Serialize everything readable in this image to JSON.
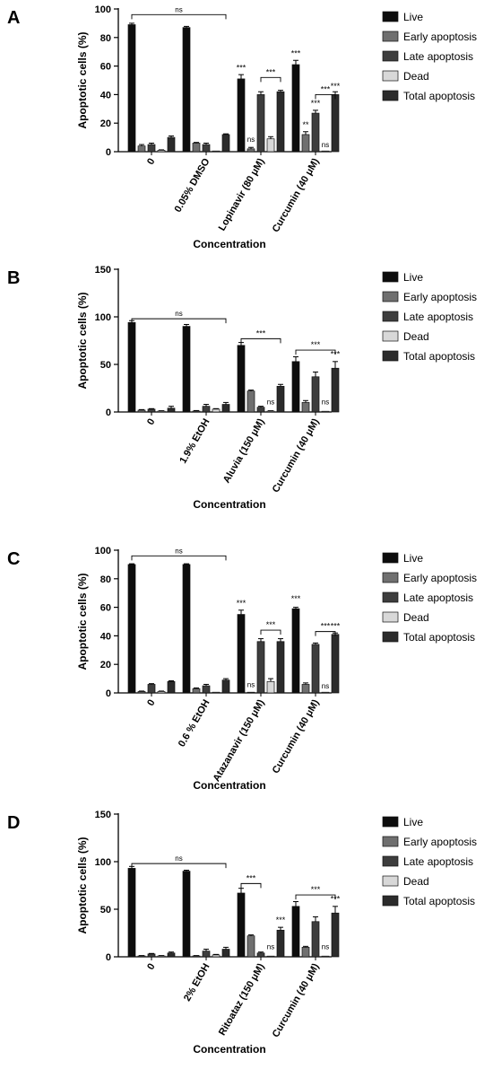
{
  "legend_labels": [
    "Live",
    "Early apoptosis",
    "Late apoptosis",
    "Dead",
    "Total apoptosis"
  ],
  "series_colors": [
    "#0d0d0d",
    "#6f6f6f",
    "#3d3d3d",
    "#d8d8d8",
    "#2b2b2b"
  ],
  "chart_data": [
    {
      "panel": "A",
      "type": "bar",
      "ylabel": "Apoptotic cells (%)",
      "xlabel": "Concentration",
      "ylim": [
        0,
        100
      ],
      "yticks": [
        0,
        20,
        40,
        60,
        80,
        100
      ],
      "categories": [
        "0",
        "0.05% DMSO",
        "Lopinavir (80 μM)",
        "Curcumin (40 μM)"
      ],
      "series": [
        {
          "name": "Live",
          "values": [
            89,
            87,
            51,
            61
          ],
          "errors": [
            1,
            0.8,
            3,
            3
          ]
        },
        {
          "name": "Early apoptosis",
          "values": [
            4,
            6,
            2,
            12
          ],
          "errors": [
            1,
            0.5,
            1,
            2
          ]
        },
        {
          "name": "Late apoptosis",
          "values": [
            5,
            5,
            40,
            27
          ],
          "errors": [
            1,
            1,
            2,
            2
          ]
        },
        {
          "name": "Dead",
          "values": [
            1,
            0,
            9,
            0
          ],
          "errors": [
            0.3,
            0,
            1.5,
            0
          ]
        },
        {
          "name": "Total apoptosis",
          "values": [
            10,
            12,
            42,
            40
          ],
          "errors": [
            1,
            0.5,
            1,
            2
          ]
        }
      ],
      "annotations": [
        {
          "type": "bracket",
          "label": "ns",
          "group_from": 0,
          "bar_from": 0,
          "group_to": 1,
          "bar_to": 4,
          "y": 96
        },
        {
          "type": "bracket",
          "label": "***",
          "group_from": 2,
          "bar_from": 2,
          "group_to": 2,
          "bar_to": 4,
          "y": 52
        },
        {
          "type": "bracket",
          "label": "***",
          "group_from": 3,
          "bar_from": 2,
          "group_to": 3,
          "bar_to": 4,
          "y": 40
        },
        {
          "type": "mark",
          "label": "***",
          "group": 2,
          "bar": 0,
          "y": 57
        },
        {
          "type": "mark",
          "label": "ns",
          "group": 2,
          "bar": 1,
          "y": 7
        },
        {
          "type": "mark",
          "label": "***",
          "group": 3,
          "bar": 0,
          "y": 67
        },
        {
          "type": "mark",
          "label": "**",
          "group": 3,
          "bar": 1,
          "y": 17
        },
        {
          "type": "mark",
          "label": "***",
          "group": 3,
          "bar": 2,
          "y": 32
        },
        {
          "type": "mark",
          "label": "ns",
          "group": 3,
          "bar": 3,
          "y": 3
        },
        {
          "type": "mark",
          "label": "***",
          "group": 3,
          "bar": 4,
          "y": 44
        }
      ]
    },
    {
      "panel": "B",
      "type": "bar",
      "ylabel": "Apoptotic cells (%)",
      "xlabel": "Concentration",
      "ylim": [
        0,
        150
      ],
      "yticks": [
        0,
        50,
        100,
        150
      ],
      "categories": [
        "0",
        "1.9% EtOH",
        "Aluvia (150 μM)",
        "Curcumin (40 μM)"
      ],
      "series": [
        {
          "name": "Live",
          "values": [
            94,
            90,
            70,
            53
          ],
          "errors": [
            2,
            2,
            3,
            5
          ]
        },
        {
          "name": "Early apoptosis",
          "values": [
            2,
            1,
            22,
            10
          ],
          "errors": [
            0.5,
            0.5,
            1,
            2
          ]
        },
        {
          "name": "Late apoptosis",
          "values": [
            3,
            6,
            5,
            37
          ],
          "errors": [
            0.5,
            2,
            1,
            5
          ]
        },
        {
          "name": "Dead",
          "values": [
            1,
            3,
            1,
            0
          ],
          "errors": [
            0.3,
            0.5,
            0.3,
            0
          ]
        },
        {
          "name": "Total apoptosis",
          "values": [
            4,
            8,
            27,
            46
          ],
          "errors": [
            2,
            2,
            2,
            7
          ]
        }
      ],
      "annotations": [
        {
          "type": "bracket",
          "label": "ns",
          "group_from": 0,
          "bar_from": 0,
          "group_to": 1,
          "bar_to": 4,
          "y": 98
        },
        {
          "type": "bracket",
          "label": "***",
          "group_from": 2,
          "bar_from": 0,
          "group_to": 2,
          "bar_to": 4,
          "y": 77
        },
        {
          "type": "bracket",
          "label": "***",
          "group_from": 3,
          "bar_from": 0,
          "group_to": 3,
          "bar_to": 4,
          "y": 65
        },
        {
          "type": "mark",
          "label": "ns",
          "group": 2,
          "bar": 3,
          "y": 8
        },
        {
          "type": "mark",
          "label": "ns",
          "group": 3,
          "bar": 3,
          "y": 8
        },
        {
          "type": "mark",
          "label": "***",
          "group": 3,
          "bar": 4,
          "y": 58
        }
      ]
    },
    {
      "panel": "C",
      "type": "bar",
      "ylabel": "Apoptotic cells (%)",
      "xlabel": "Concentration",
      "ylim": [
        0,
        100
      ],
      "yticks": [
        0,
        20,
        40,
        60,
        80,
        100
      ],
      "categories": [
        "0",
        "0.6 % EtOH",
        "Atazanavir (150 μM)",
        "Curcumin (40 μM)"
      ],
      "series": [
        {
          "name": "Live",
          "values": [
            90,
            90,
            55,
            59
          ],
          "errors": [
            0.5,
            0.5,
            3,
            1
          ]
        },
        {
          "name": "Early apoptosis",
          "values": [
            1,
            3,
            0,
            6
          ],
          "errors": [
            0.3,
            0.5,
            0,
            1
          ]
        },
        {
          "name": "Late apoptosis",
          "values": [
            6,
            5,
            36,
            34
          ],
          "errors": [
            0.5,
            1,
            2,
            1
          ]
        },
        {
          "name": "Dead",
          "values": [
            1,
            0,
            8,
            0
          ],
          "errors": [
            0.3,
            0,
            2,
            0
          ]
        },
        {
          "name": "Total apoptosis",
          "values": [
            8,
            9,
            36,
            41
          ],
          "errors": [
            0.5,
            1,
            2,
            1
          ]
        }
      ],
      "annotations": [
        {
          "type": "bracket",
          "label": "ns",
          "group_from": 0,
          "bar_from": 0,
          "group_to": 1,
          "bar_to": 4,
          "y": 96
        },
        {
          "type": "bracket",
          "label": "***",
          "group_from": 2,
          "bar_from": 2,
          "group_to": 2,
          "bar_to": 4,
          "y": 44
        },
        {
          "type": "bracket",
          "label": "***",
          "group_from": 3,
          "bar_from": 2,
          "group_to": 3,
          "bar_to": 4,
          "y": 43
        },
        {
          "type": "mark",
          "label": "***",
          "group": 2,
          "bar": 0,
          "y": 61
        },
        {
          "type": "mark",
          "label": "ns",
          "group": 2,
          "bar": 1,
          "y": 4
        },
        {
          "type": "mark",
          "label": "***",
          "group": 3,
          "bar": 0,
          "y": 64
        },
        {
          "type": "mark",
          "label": "ns",
          "group": 3,
          "bar": 3,
          "y": 3
        },
        {
          "type": "mark",
          "label": "***",
          "group": 3,
          "bar": 4,
          "y": 45
        }
      ]
    },
    {
      "panel": "D",
      "type": "bar",
      "ylabel": "Apoptotic cells (%)",
      "xlabel": "Concentration",
      "ylim": [
        0,
        150
      ],
      "yticks": [
        0,
        50,
        100,
        150
      ],
      "categories": [
        "0",
        "2% EtOH",
        "Ritoataz (150 μM)",
        "Curcumin (40 μM)"
      ],
      "series": [
        {
          "name": "Live",
          "values": [
            93,
            90,
            67,
            53
          ],
          "errors": [
            2,
            1,
            5,
            5
          ]
        },
        {
          "name": "Early apoptosis",
          "values": [
            1,
            1,
            22,
            10
          ],
          "errors": [
            0.3,
            0.3,
            1,
            1
          ]
        },
        {
          "name": "Late apoptosis",
          "values": [
            3,
            6,
            4,
            37
          ],
          "errors": [
            0.5,
            2,
            1,
            5
          ]
        },
        {
          "name": "Dead",
          "values": [
            1,
            2,
            0,
            0
          ],
          "errors": [
            0.3,
            0.5,
            0,
            0
          ]
        },
        {
          "name": "Total apoptosis",
          "values": [
            4,
            8,
            28,
            46
          ],
          "errors": [
            1,
            2,
            3,
            7
          ]
        }
      ],
      "annotations": [
        {
          "type": "bracket",
          "label": "ns",
          "group_from": 0,
          "bar_from": 0,
          "group_to": 1,
          "bar_to": 4,
          "y": 98
        },
        {
          "type": "bracket",
          "label": "***",
          "group_from": 2,
          "bar_from": 0,
          "group_to": 2,
          "bar_to": 2,
          "y": 77
        },
        {
          "type": "bracket",
          "label": "***",
          "group_from": 3,
          "bar_from": 0,
          "group_to": 3,
          "bar_to": 4,
          "y": 65
        },
        {
          "type": "mark",
          "label": "***",
          "group": 2,
          "bar": 4,
          "y": 36
        },
        {
          "type": "mark",
          "label": "ns",
          "group": 2,
          "bar": 3,
          "y": 8
        },
        {
          "type": "mark",
          "label": "ns",
          "group": 3,
          "bar": 3,
          "y": 8
        },
        {
          "type": "mark",
          "label": "***",
          "group": 3,
          "bar": 4,
          "y": 58
        }
      ]
    }
  ]
}
